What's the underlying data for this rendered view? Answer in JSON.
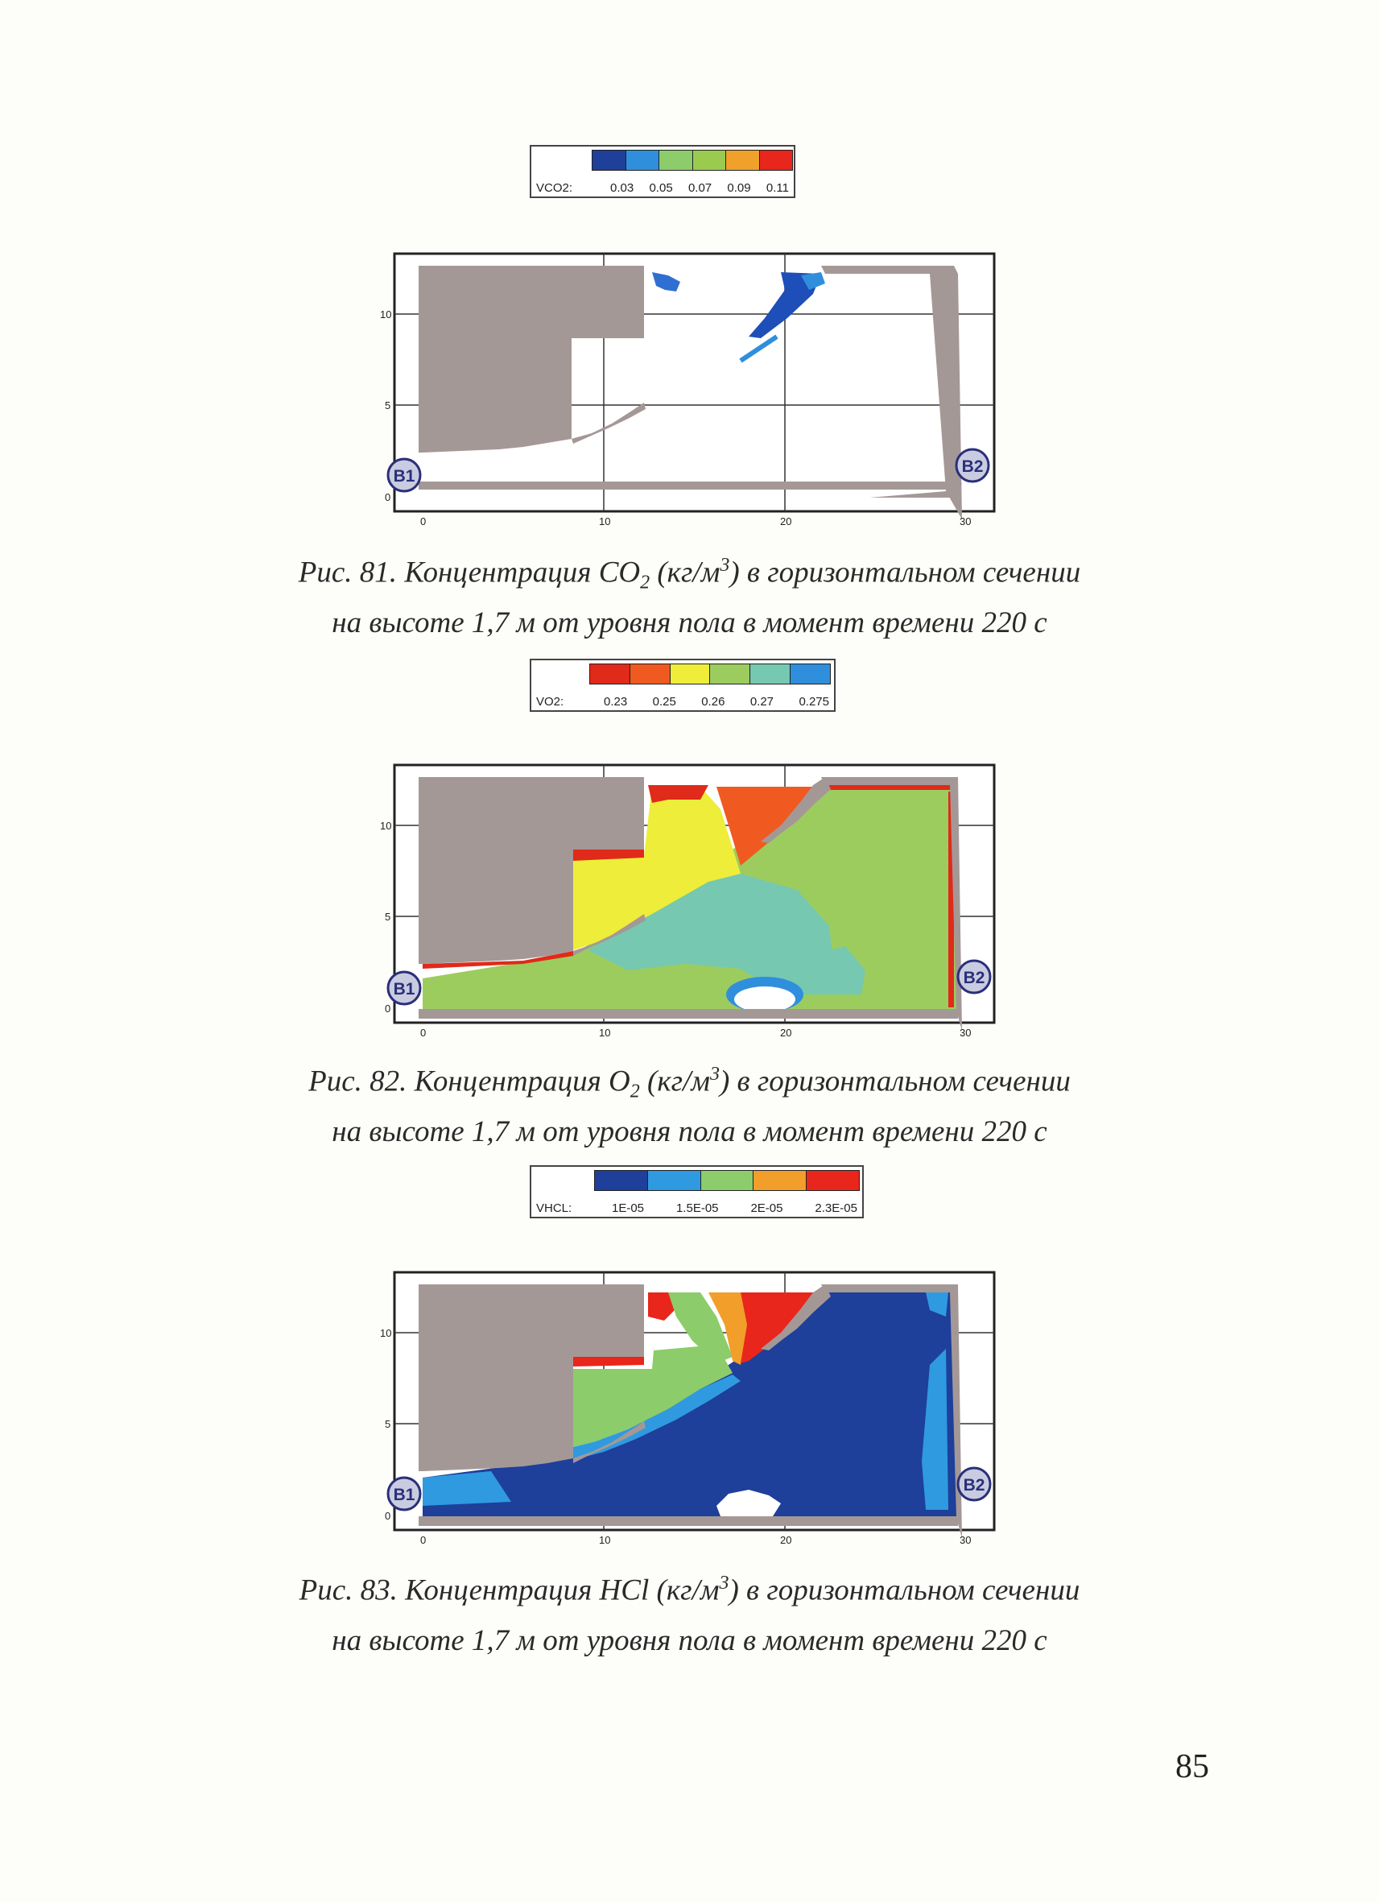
{
  "page_number": "85",
  "figures": [
    {
      "legend": {
        "name": "VCO2:",
        "ticks": [
          "0.03",
          "0.05",
          "0.07",
          "0.09",
          "0.11"
        ],
        "colors": [
          "#1e3f9a",
          "#2f8fdd",
          "#8ccc6a",
          "#9acb4e",
          "#f0a12a",
          "#e8261c"
        ]
      },
      "caption": {
        "fig": "Рис. 81.",
        "text_a": "Концентрация CO",
        "sub": "2",
        "text_b": "(кг/м",
        "sup": "3",
        "text_c": ") в горизонтальном сечении",
        "line2": "на высоте 1,7 м от уровня пола в момент времени 220 с"
      }
    },
    {
      "legend": {
        "name": "VO2:",
        "ticks": [
          "0.23",
          "0.25",
          "0.26",
          "0.27",
          "0.275"
        ],
        "colors": [
          "#e02a1a",
          "#f05a20",
          "#eded3a",
          "#9dcc5e",
          "#76c8b0",
          "#2f8fdd"
        ]
      },
      "caption": {
        "fig": "Рис. 82.",
        "text_a": "Концентрация O",
        "sub": "2",
        "text_b": "(кг/м",
        "sup": "3",
        "text_c": ") в горизонтальном сечении",
        "line2": "на высоте 1,7 м от уровня пола в момент времени 220 с"
      }
    },
    {
      "legend": {
        "name": "VHCL:",
        "ticks": [
          "1E-05",
          "1.5E-05",
          "2E-05",
          "2.3E-05"
        ],
        "colors": [
          "#1e3f9a",
          "#2f9ae0",
          "#8ccc6a",
          "#f29e2a",
          "#e8261c"
        ]
      },
      "caption": {
        "fig": "Рис. 83.",
        "text_a": "Концентрация HCl",
        "sub": "",
        "text_b": "(кг/м",
        "sup": "3",
        "text_c": ") в горизонтальном сечении",
        "line2": "на высоте 1,7 м от уровня пола в момент времени 220 с"
      }
    }
  ],
  "plot": {
    "y_ticks": [
      "0",
      "5",
      "10"
    ],
    "x_ticks": [
      "0",
      "10",
      "20",
      "30"
    ],
    "markers": [
      "B1",
      "B2"
    ],
    "wall_color": "#a49896",
    "marker_color": "#2a2f7a"
  }
}
